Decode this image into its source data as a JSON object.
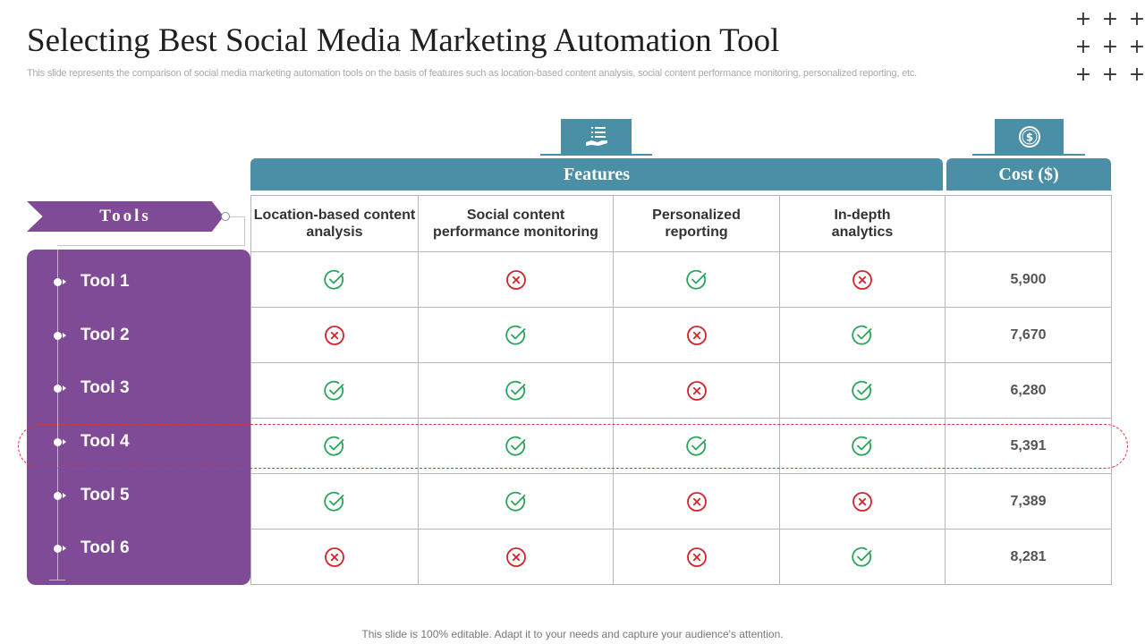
{
  "title": "Selecting Best Social Media Marketing Automation Tool",
  "subtitle": "This slide represents the comparison of social media marketing automation tools on the basis of features such as location-based content analysis, social content performance monitoring, personalized reporting, etc.",
  "decoration": {
    "plus_symbol": "+"
  },
  "header": {
    "features_label": "Features",
    "cost_label": "Cost ($)",
    "features_icon": "hand-list-icon",
    "cost_icon": "dollar-coin-icon"
  },
  "tools_label": "Tools",
  "columns": [
    "Location-based content analysis",
    "Social content performance monitoring",
    "Personalized reporting",
    "In-depth analytics"
  ],
  "rows": [
    {
      "tool": "Tool 1",
      "features": [
        true,
        false,
        true,
        false
      ],
      "cost": "5,900"
    },
    {
      "tool": "Tool 2",
      "features": [
        false,
        true,
        false,
        true
      ],
      "cost": "7,670"
    },
    {
      "tool": "Tool 3",
      "features": [
        true,
        true,
        false,
        true
      ],
      "cost": "6,280"
    },
    {
      "tool": "Tool 4",
      "features": [
        true,
        true,
        true,
        true
      ],
      "cost": "5,391"
    },
    {
      "tool": "Tool 5",
      "features": [
        true,
        true,
        false,
        false
      ],
      "cost": "7,389"
    },
    {
      "tool": "Tool 6",
      "features": [
        false,
        false,
        false,
        true
      ],
      "cost": "8,281"
    }
  ],
  "highlighted_tool": "Tool 4",
  "colors": {
    "accent_teal": "#4a8fa6",
    "accent_purple": "#7f4a96",
    "check_green": "#2aa35a",
    "cross_red": "#d2232a"
  },
  "footer": "This slide is 100% editable. Adapt it to your needs and capture your audience's attention."
}
